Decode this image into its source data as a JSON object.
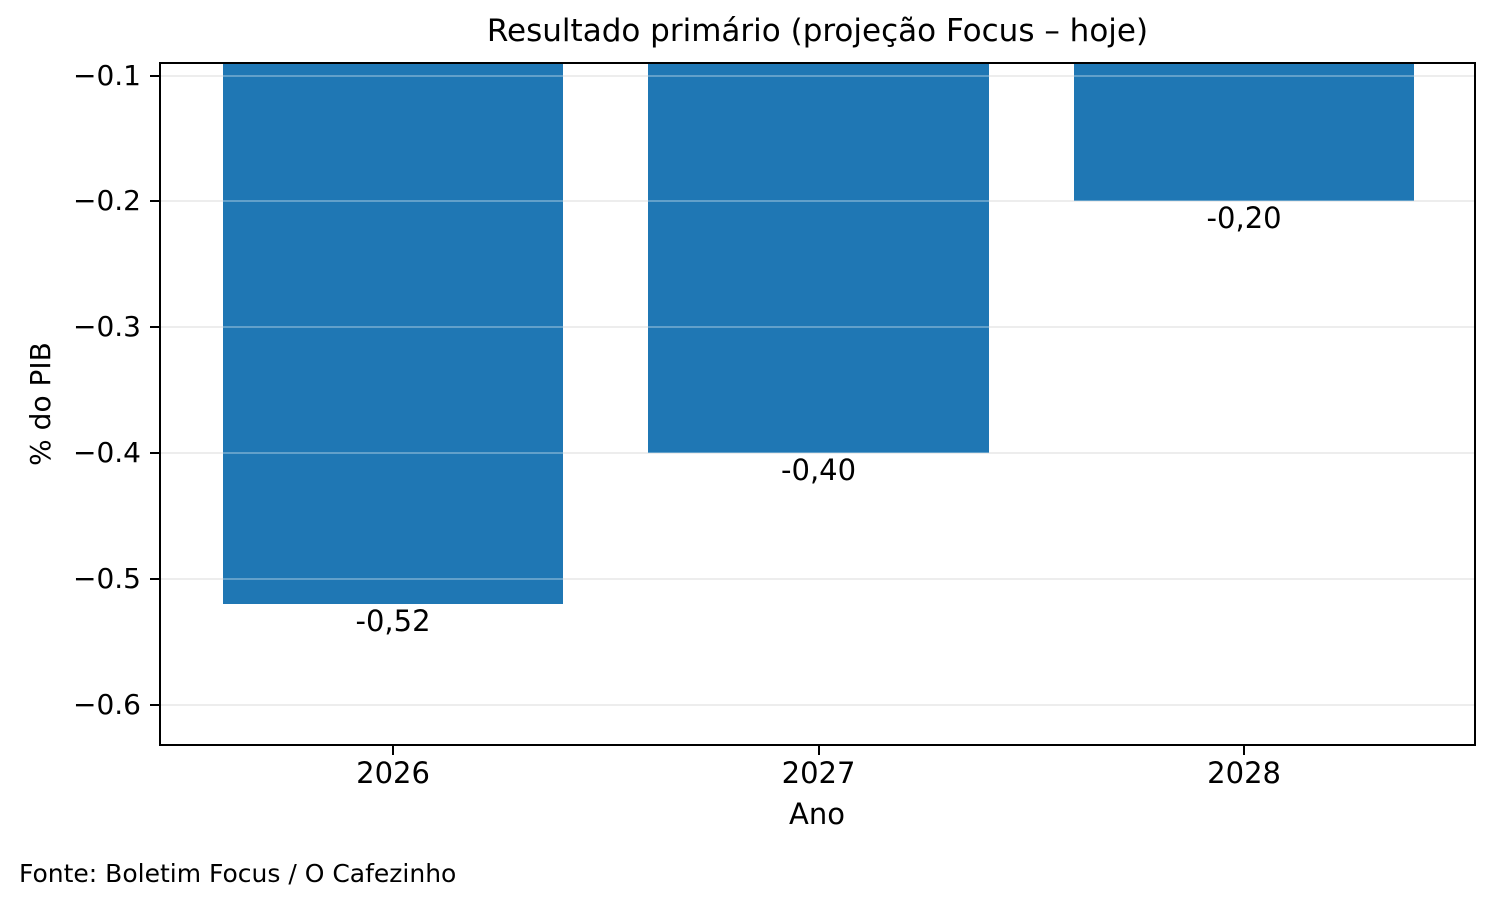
{
  "footer": {
    "text": "Fonte: Boletim Focus / O Cafezinho"
  },
  "chart_data": {
    "type": "bar",
    "title": "Resultado primário (projeção Focus – hoje)",
    "xlabel": "Ano",
    "ylabel": "% do PIB",
    "categories": [
      "2026",
      "2027",
      "2028"
    ],
    "values": [
      -0.52,
      -0.4,
      -0.2
    ],
    "value_labels": [
      "-0,52",
      "-0,40",
      "-0,20"
    ],
    "bar_color": "#1f77b4",
    "bar_width": 0.8,
    "baseline": 0,
    "grid": true,
    "legend": false,
    "xlim": [
      -0.55,
      2.545
    ],
    "ylim": [
      -0.6326,
      -0.0892
    ],
    "yticks": [
      {
        "value": -0.1,
        "label": "−0.1"
      },
      {
        "value": -0.2,
        "label": "−0.2"
      },
      {
        "value": -0.3,
        "label": "−0.3"
      },
      {
        "value": -0.4,
        "label": "−0.4"
      },
      {
        "value": -0.5,
        "label": "−0.5"
      },
      {
        "value": -0.6,
        "label": "−0.6"
      }
    ]
  }
}
